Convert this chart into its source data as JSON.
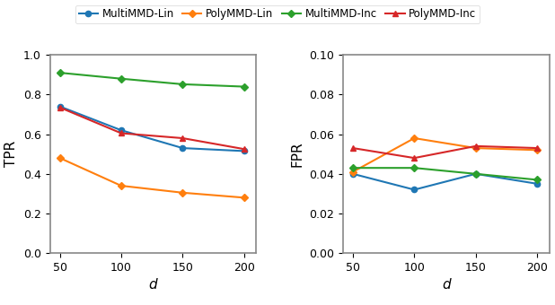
{
  "x": [
    50,
    100,
    150,
    200
  ],
  "tpr": {
    "MultiMMD-Lin": [
      0.74,
      0.62,
      0.53,
      0.515
    ],
    "PolyMMD-Lin": [
      0.48,
      0.34,
      0.305,
      0.28
    ],
    "MultiMMD-Inc": [
      0.91,
      0.88,
      0.852,
      0.84
    ],
    "PolyMMD-Inc": [
      0.735,
      0.605,
      0.58,
      0.525
    ]
  },
  "fpr": {
    "MultiMMD-Lin": [
      0.04,
      0.032,
      0.04,
      0.035
    ],
    "PolyMMD-Lin": [
      0.041,
      0.058,
      0.053,
      0.052
    ],
    "MultiMMD-Inc": [
      0.043,
      0.043,
      0.04,
      0.037
    ],
    "PolyMMD-Inc": [
      0.053,
      0.048,
      0.054,
      0.053
    ]
  },
  "colors": {
    "MultiMMD-Lin": "#1f77b4",
    "PolyMMD-Lin": "#ff7f0e",
    "MultiMMD-Inc": "#2ca02c",
    "PolyMMD-Inc": "#d62728"
  },
  "markers": {
    "MultiMMD-Lin": "o",
    "PolyMMD-Lin": "D",
    "MultiMMD-Inc": "D",
    "PolyMMD-Inc": "^"
  },
  "series_order": [
    "MultiMMD-Lin",
    "PolyMMD-Lin",
    "MultiMMD-Inc",
    "PolyMMD-Inc"
  ],
  "tpr_ylim": [
    0.0,
    1.0
  ],
  "fpr_ylim": [
    0.0,
    0.1
  ],
  "xlabel": "d",
  "tpr_ylabel": "TPR",
  "fpr_ylabel": "FPR",
  "tpr_yticks": [
    0.0,
    0.2,
    0.4,
    0.6,
    0.8,
    1.0
  ],
  "fpr_yticks": [
    0.0,
    0.02,
    0.04,
    0.06,
    0.08,
    0.1
  ],
  "xticks": [
    50,
    100,
    150,
    200
  ],
  "background_color": "#ffffff"
}
